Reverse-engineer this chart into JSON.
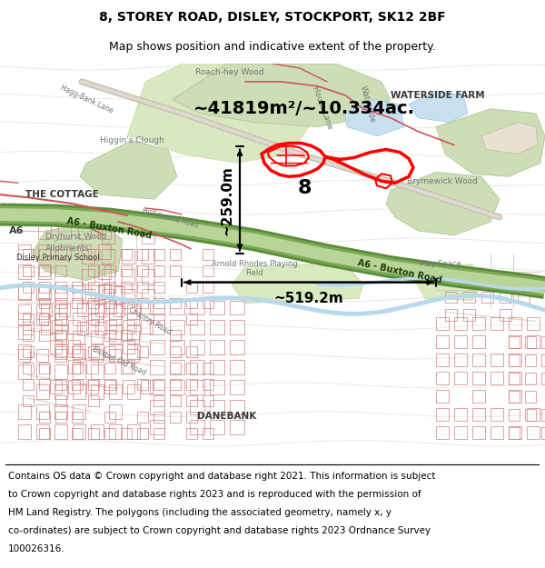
{
  "title_line1": "8, STOREY ROAD, DISLEY, STOCKPORT, SK12 2BF",
  "title_line2": "Map shows position and indicative extent of the property.",
  "area_text": "~41819m²/~10.334ac.",
  "width_text": "~519.2m",
  "height_text": "~259.0m",
  "label_8": "8",
  "footer_lines": [
    "Contains OS data © Crown copyright and database right 2021. This information is subject",
    "to Crown copyright and database rights 2023 and is reproduced with the permission of",
    "HM Land Registry. The polygons (including the associated geometry, namely x, y",
    "co-ordinates) are subject to Crown copyright and database rights 2023 Ordnance Survey",
    "100026316."
  ],
  "map_bg": "#f7f3ee",
  "wood_color": "#cdddb5",
  "wood_edge": "#aac090",
  "road_green_dark": "#5a8c3a",
  "road_green_mid": "#7aaa55",
  "road_green_light": "#b8d498",
  "road_gray": "#d0c8b8",
  "river_color": "#b8d8ec",
  "building_stroke": "#d08080",
  "prop_red": "#ff0000",
  "black": "#000000",
  "white": "#ffffff",
  "gray_text": "#707878",
  "dark_text": "#383838",
  "road_text_green": "#1a3a08",
  "header_fs_title": 10,
  "header_fs_sub": 9,
  "footer_fs": 7.5,
  "map_label_fs": 6.5,
  "area_fs": 14,
  "dim_fs": 11,
  "prop_label_fs": 16
}
